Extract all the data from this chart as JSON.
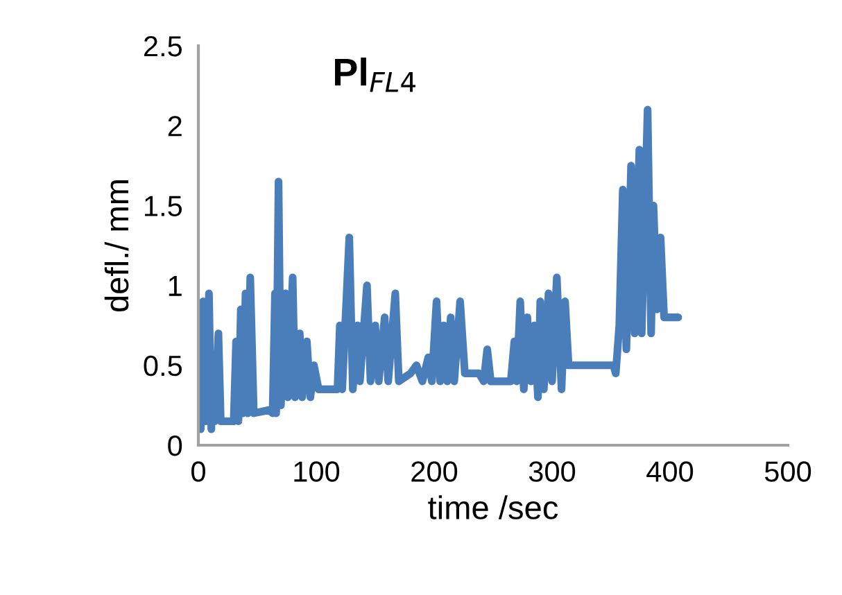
{
  "chart_data": {
    "type": "line",
    "title": "Pl$_{FL4}$",
    "xlabel": "time /sec",
    "ylabel": "defl./ mm",
    "xlim": [
      0,
      500
    ],
    "ylim": [
      0,
      2.5
    ],
    "xticks": [
      0,
      100,
      200,
      300,
      400,
      500
    ],
    "yticks": [
      0,
      0.5,
      1,
      1.5,
      2,
      2.5
    ],
    "grid": false,
    "legend": false,
    "marker": "none",
    "line_style": "solid",
    "series": [
      {
        "color": "#4a7ebb",
        "x": [
          0,
          1,
          2,
          4,
          6,
          9,
          11,
          12,
          14,
          17,
          19,
          30,
          32,
          34,
          36,
          38,
          40,
          42,
          44,
          47,
          60,
          63,
          65,
          66,
          68,
          70,
          74,
          76,
          80,
          82,
          86,
          88,
          92,
          95,
          98,
          102,
          118,
          120,
          122,
          128,
          131,
          135,
          137,
          143,
          146,
          150,
          153,
          158,
          161,
          167,
          170,
          180,
          185,
          190,
          195,
          198,
          202,
          205,
          208,
          211,
          214,
          217,
          222,
          226,
          238,
          242,
          245,
          248,
          265,
          268,
          270,
          273,
          276,
          279,
          282,
          285,
          288,
          290,
          293,
          297,
          300,
          304,
          308,
          311,
          314,
          352,
          354,
          357,
          360,
          363,
          367,
          370,
          374,
          376,
          381,
          384,
          386,
          389,
          392,
          395,
          407
        ],
        "values": [
          0.1,
          0.65,
          0.1,
          0.9,
          0.15,
          0.95,
          0.1,
          0.55,
          0.15,
          0.7,
          0.15,
          0.15,
          0.65,
          0.15,
          0.85,
          0.2,
          0.95,
          0.2,
          1.05,
          0.2,
          0.22,
          0.2,
          0.95,
          0.2,
          1.65,
          0.25,
          0.95,
          0.3,
          1.05,
          0.3,
          0.7,
          0.3,
          0.65,
          0.3,
          0.5,
          0.35,
          0.35,
          0.75,
          0.35,
          1.3,
          0.35,
          0.75,
          0.4,
          1.0,
          0.4,
          0.75,
          0.4,
          0.8,
          0.4,
          0.95,
          0.4,
          0.45,
          0.5,
          0.4,
          0.55,
          0.4,
          0.9,
          0.4,
          0.75,
          0.4,
          0.8,
          0.4,
          0.9,
          0.45,
          0.45,
          0.4,
          0.6,
          0.4,
          0.4,
          0.65,
          0.4,
          0.9,
          0.35,
          0.8,
          0.4,
          0.75,
          0.3,
          0.9,
          0.35,
          0.95,
          0.4,
          1.05,
          0.35,
          0.9,
          0.5,
          0.5,
          0.45,
          0.75,
          1.6,
          0.6,
          1.75,
          0.7,
          1.85,
          0.7,
          2.1,
          0.7,
          1.5,
          0.85,
          1.3,
          0.8,
          0.8
        ]
      }
    ]
  }
}
